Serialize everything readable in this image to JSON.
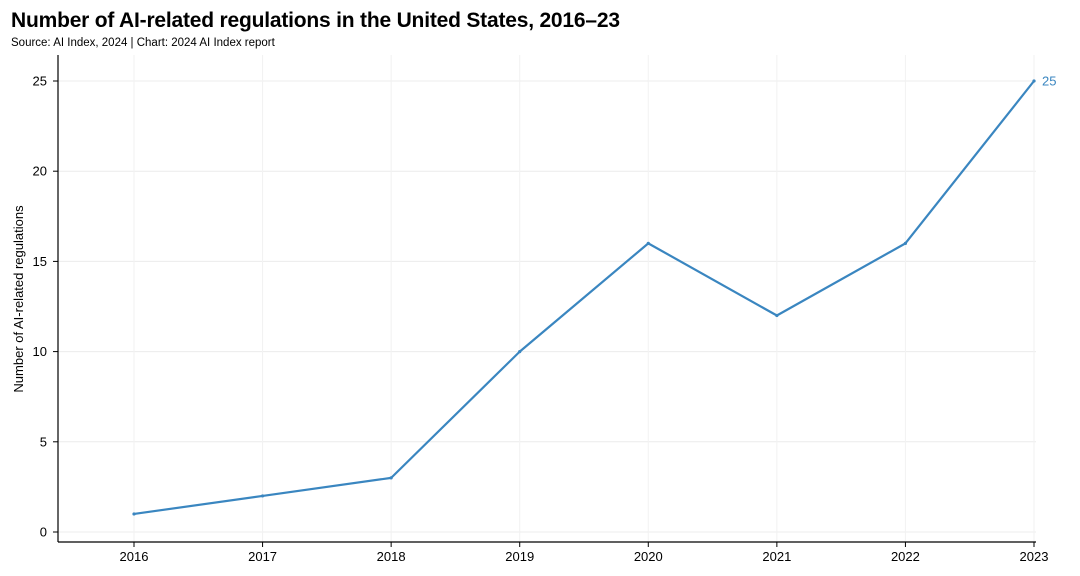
{
  "title": "Number of AI-related regulations in the United States, 2016–23",
  "subtitle": "Source: AI Index, 2024 | Chart: 2024 AI Index report",
  "chart_data": {
    "type": "line",
    "title": "Number of AI-related regulations in the United States, 2016–23",
    "subtitle": "Source: AI Index, 2024 | Chart: 2024 AI Index report",
    "xlabel": "",
    "ylabel": "Number of AI-related regulations",
    "categories": [
      "2016",
      "2017",
      "2018",
      "2019",
      "2020",
      "2021",
      "2022",
      "2023"
    ],
    "series": [
      {
        "values": [
          1,
          2,
          3,
          10,
          16,
          12,
          16,
          25
        ],
        "color": "#3a86c0"
      }
    ],
    "yticks": [
      0,
      5,
      10,
      15,
      20,
      25
    ],
    "ylim": [
      0,
      26
    ],
    "grid": true,
    "end_label": "25"
  }
}
